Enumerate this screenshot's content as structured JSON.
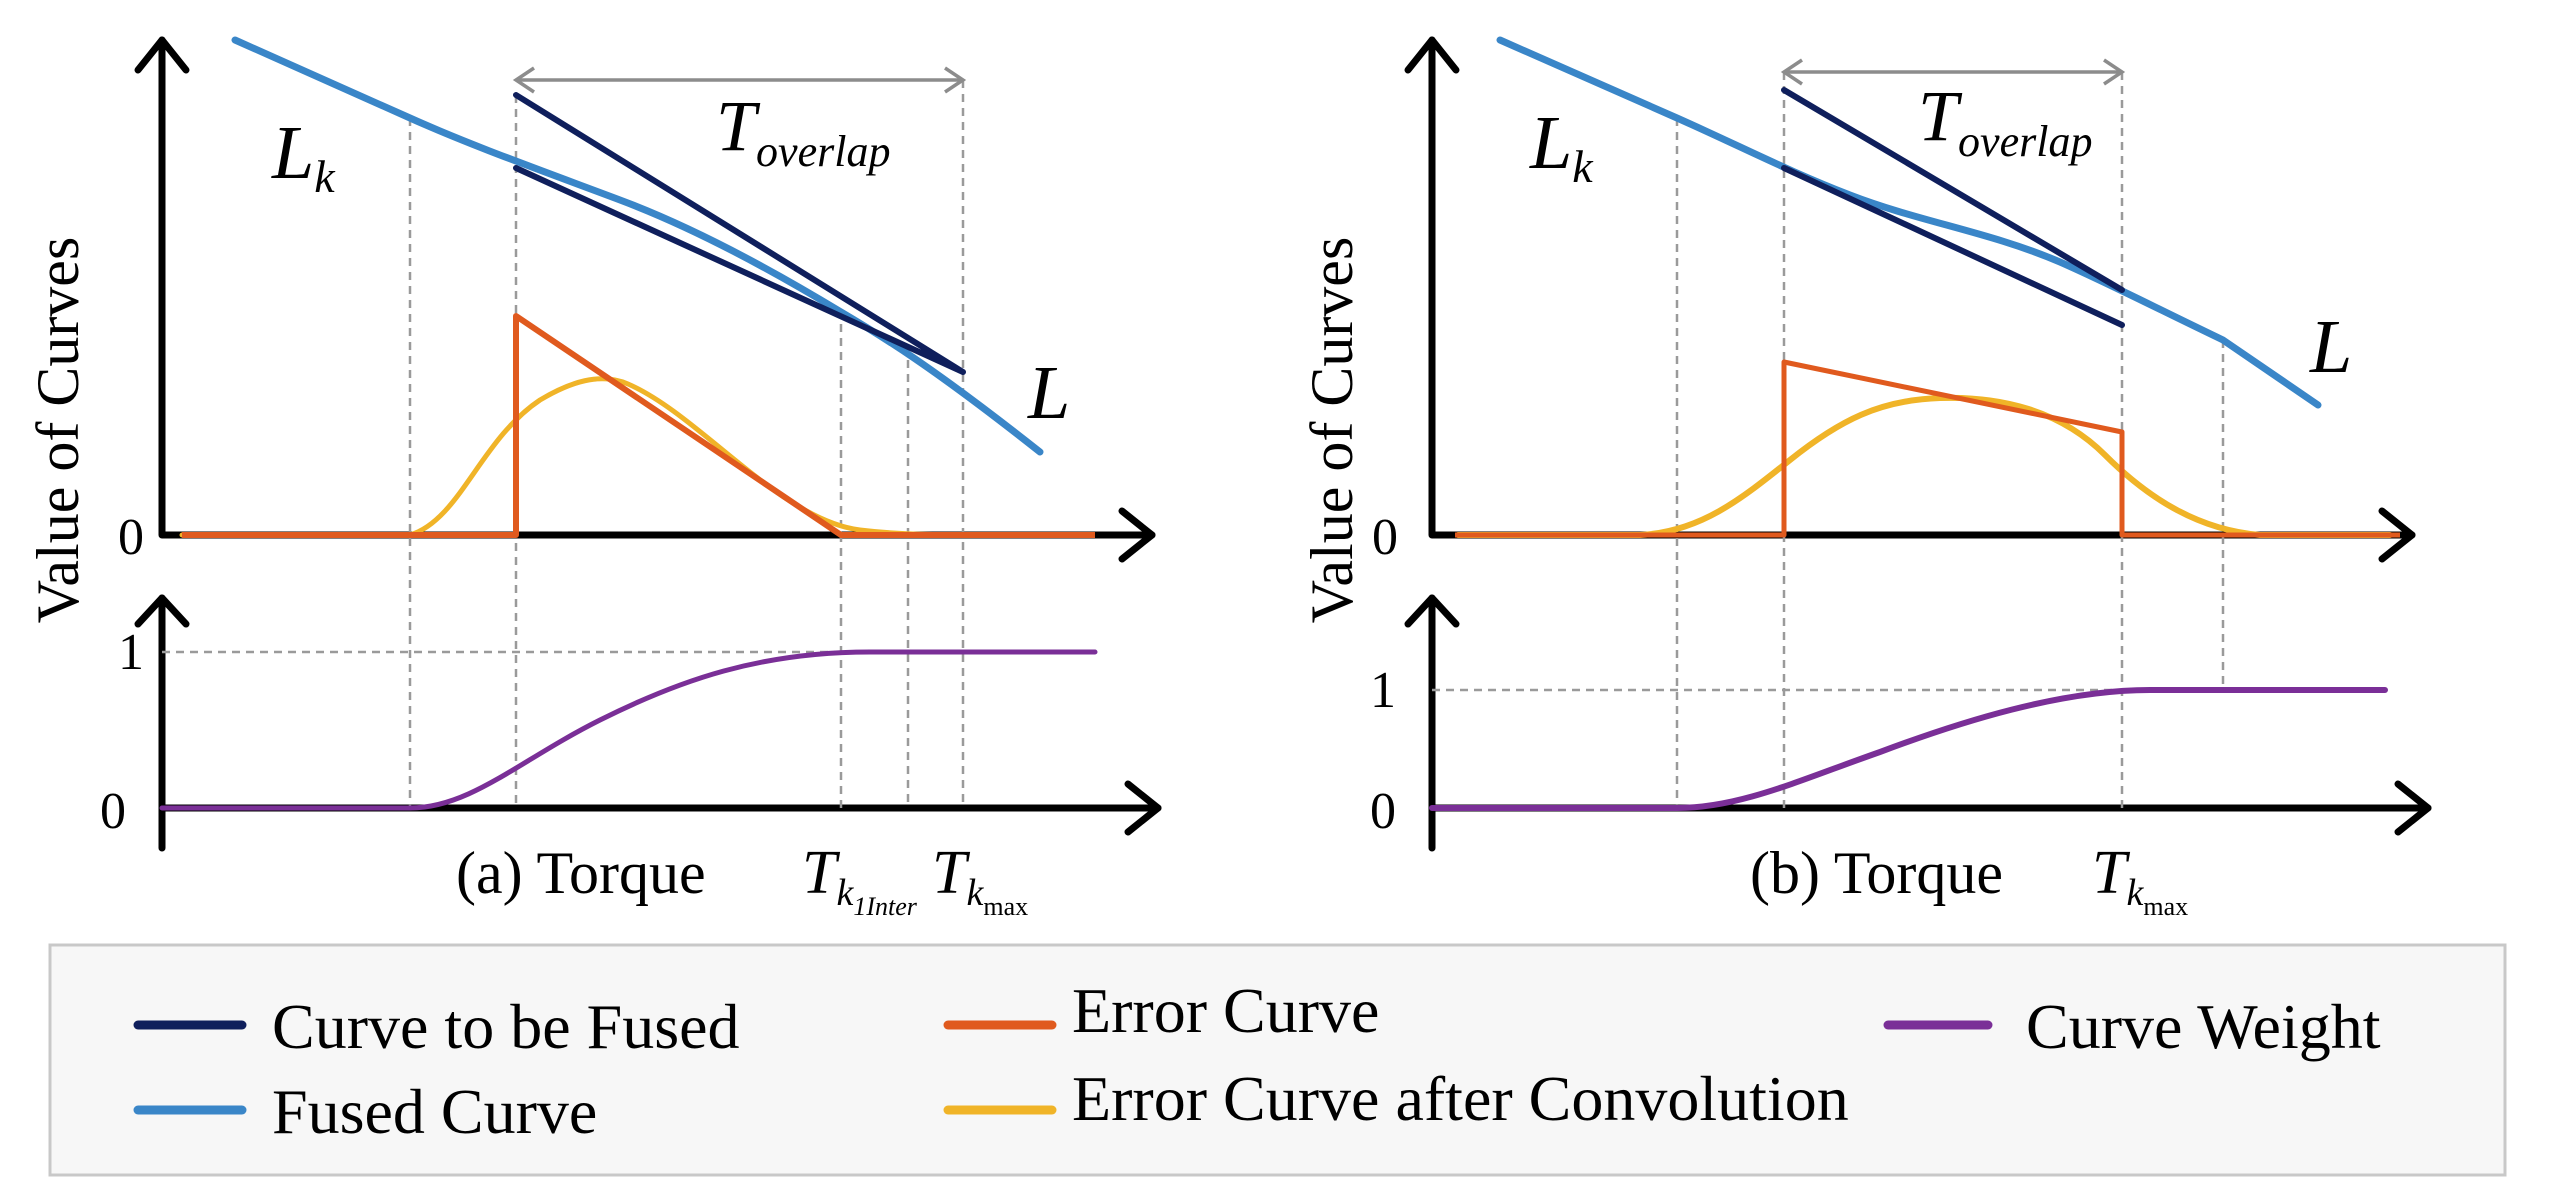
{
  "colors": {
    "curve_to_be_fused": "#0f1f5c",
    "fused_curve": "#3a86c8",
    "error_curve": "#e05a1e",
    "error_curve_conv": "#f0b428",
    "curve_weight": "#7a2f97",
    "guide": "#9a9a9a",
    "axis": "#000000"
  },
  "ylabel": "Value of Curves",
  "panel_a": {
    "caption": "(a) Torque",
    "label_Lk": "L",
    "label_Lk_sub": "k",
    "label_L": "L",
    "overlap_T": "T",
    "overlap_sub": "overlap",
    "tick_inter_T": "T",
    "tick_inter_k": "k",
    "tick_inter_sub": "1Inter",
    "tick_max_T": "T",
    "tick_max_k": "k",
    "tick_max_sub": "max",
    "top_zero": "0",
    "bottom_one": "1",
    "bottom_zero": "0"
  },
  "panel_b": {
    "caption": "(b) Torque",
    "label_Lk": "L",
    "label_Lk_sub": "k",
    "label_L": "L",
    "overlap_T": "T",
    "overlap_sub": "overlap",
    "tick_max_T": "T",
    "tick_max_k": "k",
    "tick_max_sub": "max",
    "top_zero": "0",
    "bottom_one": "1",
    "bottom_zero": "0"
  },
  "legend": {
    "curve_to_be_fused": "Curve to be Fused",
    "fused_curve": "Fused Curve",
    "error_curve": "Error Curve",
    "error_curve_conv": "Error Curve after Convolution",
    "curve_weight": "Curve Weight"
  }
}
